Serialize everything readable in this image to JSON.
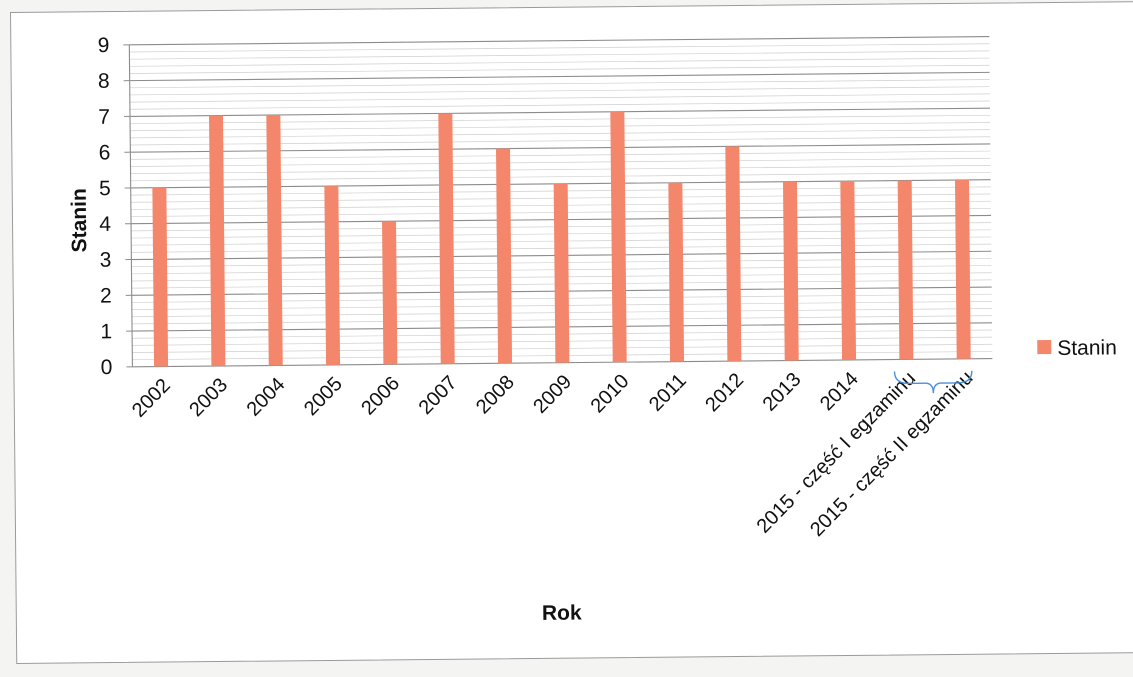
{
  "chart_data": {
    "type": "bar",
    "categories": [
      "2002",
      "2003",
      "2004",
      "2005",
      "2006",
      "2007",
      "2008",
      "2009",
      "2010",
      "2011",
      "2012",
      "2013",
      "2014",
      "2015 - część I egzaminu",
      "2015 - część II egzaminu"
    ],
    "series": [
      {
        "name": "Stanin",
        "values": [
          5,
          7,
          7,
          5,
          4,
          7,
          6,
          5,
          7,
          5,
          6,
          5,
          5,
          5,
          5
        ],
        "color": "#f4876b"
      }
    ],
    "xlabel": "Rok",
    "ylabel": "Stanin",
    "ylim": [
      0,
      9
    ],
    "yticks": [
      "0",
      "1",
      "2",
      "3",
      "4",
      "5",
      "6",
      "7",
      "8",
      "9"
    ],
    "grid": true,
    "legend": "right",
    "bracket_color": "#4a90d9"
  }
}
